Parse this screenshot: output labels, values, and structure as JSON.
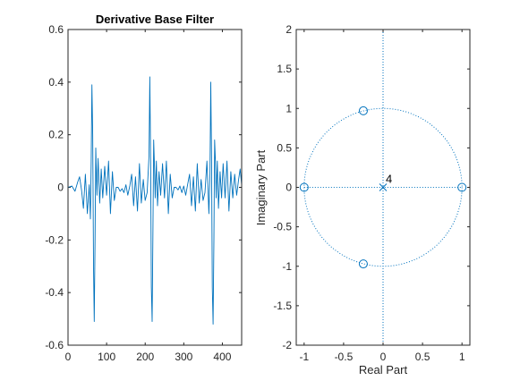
{
  "chart_data": [
    {
      "type": "line",
      "title": "Derivative Base Filter",
      "xlabel": "",
      "ylabel": "",
      "xlim": [
        0,
        450
      ],
      "ylim": [
        -0.6,
        0.6
      ],
      "xticks": [
        0,
        100,
        200,
        300,
        400
      ],
      "xtick_labels": [
        "0",
        "100",
        "200",
        "300",
        "400"
      ],
      "yticks": [
        -0.6,
        -0.4,
        -0.2,
        0,
        0.2,
        0.4,
        0.6
      ],
      "ytick_labels": [
        "-0.6",
        "-0.4",
        "-0.2",
        "0",
        "0.2",
        "0.4",
        "0.6"
      ],
      "grid": false,
      "color": "#0072bd",
      "series": [
        {
          "x": [
            0,
            10,
            18,
            25,
            30,
            35,
            40,
            45,
            50,
            55,
            58,
            60,
            62,
            64,
            66,
            68,
            70,
            72,
            75,
            78,
            82,
            86,
            90,
            95,
            100,
            105,
            110,
            115,
            120,
            125,
            130,
            135,
            140,
            145,
            150,
            155,
            160,
            165,
            170,
            175,
            180,
            185,
            190,
            195,
            200,
            205,
            210,
            212,
            214,
            216,
            218,
            220,
            222,
            224,
            226,
            229,
            232,
            236,
            240,
            245,
            250,
            255,
            260,
            265,
            270,
            275,
            280,
            285,
            290,
            295,
            300,
            305,
            310,
            315,
            320,
            325,
            330,
            335,
            340,
            345,
            350,
            355,
            360,
            365,
            368,
            370,
            372,
            374,
            376,
            378,
            380,
            382,
            384,
            387,
            390,
            394,
            398,
            402,
            407,
            412,
            417,
            422,
            427,
            432,
            437,
            442,
            446,
            450
          ],
          "y": [
            0,
            0.005,
            -0.015,
            0.02,
            0.04,
            -0.01,
            -0.08,
            0.05,
            -0.1,
            0.01,
            -0.12,
            0.1,
            0.39,
            0.2,
            -0.3,
            -0.51,
            -0.2,
            0.15,
            -0.03,
            0.11,
            -0.06,
            0.07,
            -0.04,
            0.08,
            -0.03,
            0.1,
            -0.1,
            0.06,
            -0.05,
            0,
            0,
            -0.015,
            -0.005,
            -0.02,
            0.01,
            -0.03,
            0.005,
            0.05,
            -0.07,
            0.04,
            -0.09,
            0.09,
            -0.06,
            0.03,
            -0.05,
            -0.02,
            0.12,
            0.42,
            0.1,
            -0.38,
            -0.51,
            -0.2,
            0.18,
            0.08,
            -0.04,
            0.1,
            -0.07,
            0.06,
            -0.03,
            0.09,
            -0.04,
            0.1,
            -0.1,
            0.05,
            -0.04,
            0,
            0,
            -0.01,
            0.005,
            -0.02,
            0.005,
            -0.03,
            0.01,
            0.05,
            -0.07,
            0.04,
            -0.09,
            0.09,
            -0.06,
            0.03,
            -0.05,
            -0.02,
            0.1,
            -0.1,
            0.05,
            0.4,
            0.1,
            -0.38,
            -0.52,
            -0.2,
            0.18,
            0.1,
            -0.04,
            0.1,
            -0.08,
            0.06,
            -0.04,
            0.09,
            -0.04,
            0.1,
            -0.09,
            0.06,
            -0.04,
            0.05,
            -0.03,
            0.03,
            0.07,
            0.01
          ]
        }
      ]
    },
    {
      "type": "scatter",
      "title": "",
      "xlabel": "Real Part",
      "ylabel": "Imaginary Part",
      "xlim": [
        -1.1,
        1.1
      ],
      "ylim": [
        -2,
        2
      ],
      "xticks": [
        -1,
        -0.5,
        0,
        0.5,
        1
      ],
      "xtick_labels": [
        "-1",
        "-0.5",
        "0",
        "0.5",
        "1"
      ],
      "yticks": [
        -2,
        -1.5,
        -1,
        -0.5,
        0,
        0.5,
        1,
        1.5,
        2
      ],
      "ytick_labels": [
        "-2",
        "-1.5",
        "-1",
        "-0.5",
        "0",
        "0.5",
        "1",
        "1.5",
        "2"
      ],
      "grid": false,
      "unit_circle": true,
      "color": "#0072bd",
      "zeros": [
        {
          "re": -1,
          "im": 0
        },
        {
          "re": -0.25,
          "im": 0.97
        },
        {
          "re": -0.25,
          "im": -0.97
        },
        {
          "re": 1,
          "im": 0
        }
      ],
      "poles": [
        {
          "re": 0,
          "im": 0
        }
      ],
      "annotations": [
        {
          "text": "4",
          "re": 0,
          "im": 0
        }
      ]
    }
  ]
}
